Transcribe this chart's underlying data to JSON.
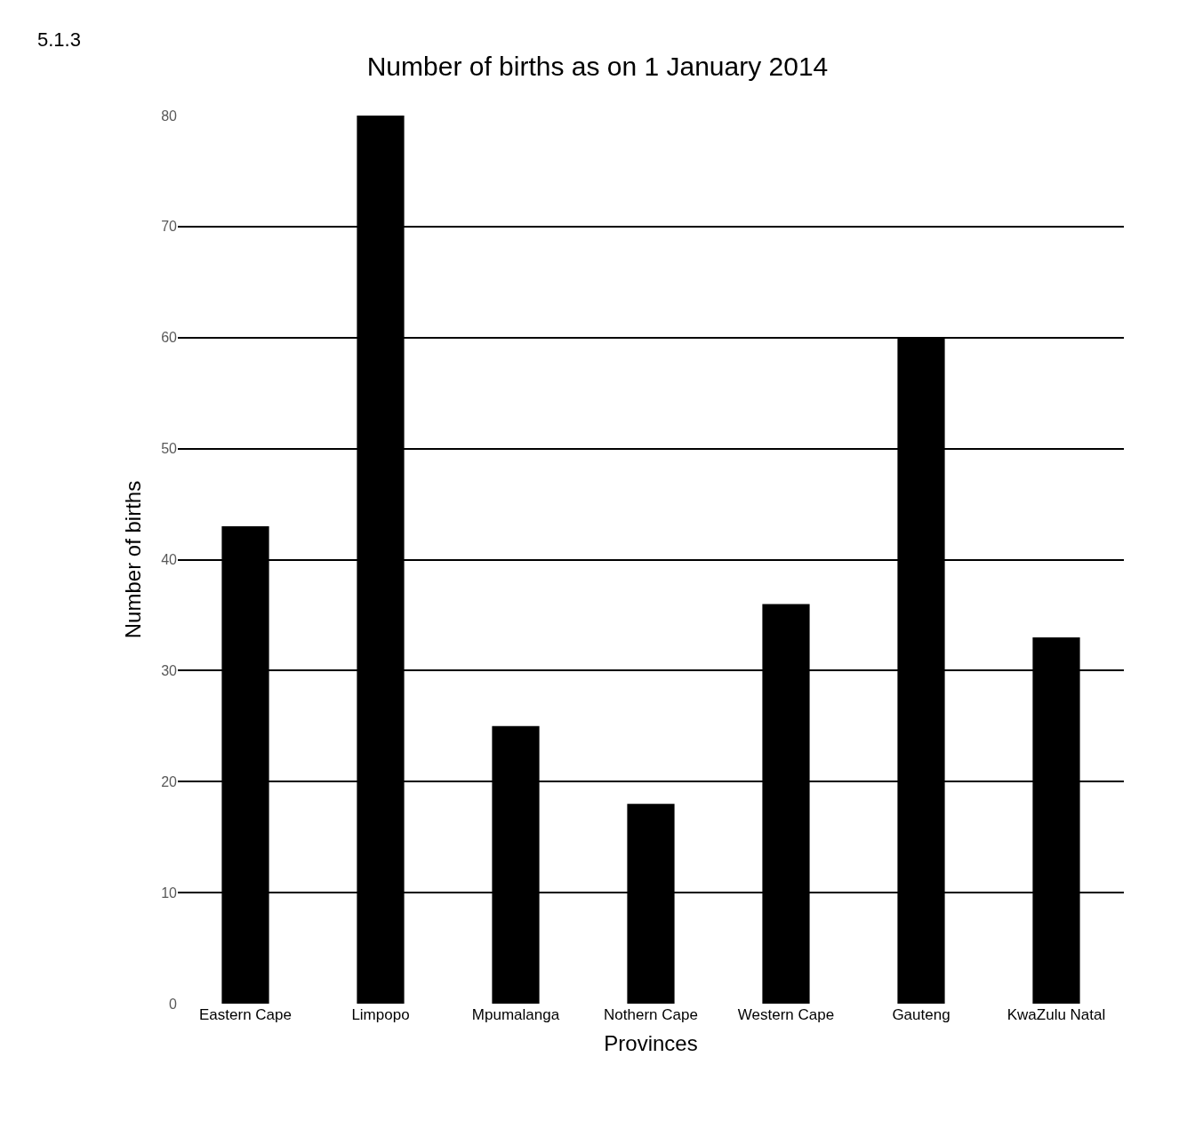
{
  "chart_data": {
    "type": "bar",
    "title": "Number of births as on 1 January 2014",
    "xlabel": "Provinces",
    "ylabel": "Number of births",
    "categories": [
      "Eastern Cape",
      "Limpopo",
      "Mpumalanga",
      "Nothern Cape",
      "Western Cape",
      "Gauteng",
      "KwaZulu Natal"
    ],
    "values": [
      43,
      80,
      25,
      18,
      36,
      60,
      33
    ],
    "color": "#000000",
    "ylim": [
      0,
      80
    ],
    "yticks": [
      0,
      10,
      20,
      30,
      40,
      50,
      60,
      70,
      80
    ],
    "grid": "y",
    "annotations": [
      "5.1.3"
    ]
  }
}
